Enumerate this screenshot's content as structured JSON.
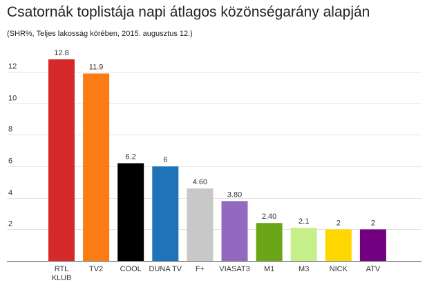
{
  "chart_data": {
    "type": "bar",
    "title": "Csatornák toplistája napi átlagos közönségarány alapján",
    "subtitle": "(SHR%, Teljes lakosság körében, 2015. augusztus 12.)",
    "categories": [
      "RTL KLUB",
      "TV2",
      "COOL",
      "DUNA TV",
      "F+",
      "VIASAT3",
      "M1",
      "M3",
      "NICK",
      "ATV"
    ],
    "values": [
      12.8,
      11.9,
      6.2,
      6,
      4.6,
      3.8,
      2.4,
      2.1,
      2,
      2
    ],
    "value_labels": [
      "12.8",
      "11.9",
      "6.2",
      "6",
      "4.60",
      "3.80",
      "2.40",
      "2.1",
      "2",
      "2"
    ],
    "colors": [
      "#d62a2a",
      "#fb7c14",
      "#000000",
      "#1f74b9",
      "#c8c8c8",
      "#9369c0",
      "#6aa617",
      "#c6ef8a",
      "#fed700",
      "#730081"
    ],
    "yticks": [
      2,
      4,
      6,
      8,
      10,
      12
    ],
    "ylim": [
      0,
      13.5
    ],
    "xlabel": "",
    "ylabel": "",
    "grid": true,
    "legend": "none"
  }
}
